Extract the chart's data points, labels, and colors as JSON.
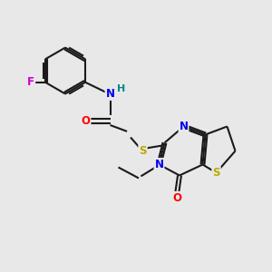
{
  "bg_color": "#e8e8e8",
  "bond_color": "#1a1a1a",
  "atom_colors": {
    "N": "#0000ee",
    "O": "#ff0000",
    "S": "#bbaa00",
    "F": "#cc00cc",
    "H": "#008888",
    "C": "#1a1a1a"
  },
  "figsize": [
    3.0,
    3.0
  ],
  "dpi": 100
}
